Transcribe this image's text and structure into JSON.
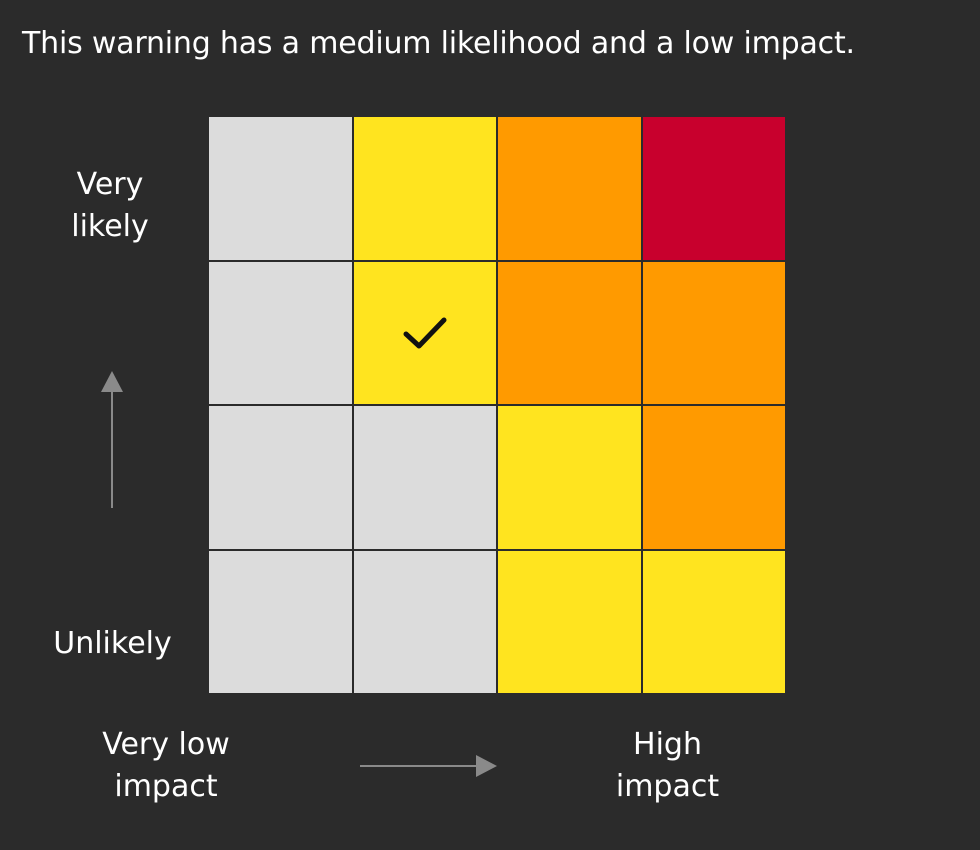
{
  "headline": "This warning has a medium likelihood and a low impact.",
  "y_axis": {
    "top_line1": "Very",
    "top_line2": "likely",
    "bottom": "Unlikely"
  },
  "x_axis": {
    "left_line1": "Very low",
    "left_line2": "impact",
    "right_line1": "High",
    "right_line2": "impact"
  },
  "colors": {
    "background": "#2b2b2b",
    "grey": "#dcdcdc",
    "yellow": "#ffe41f",
    "orange": "#ff9a00",
    "red": "#c8002d",
    "axis_arrow": "#8a8a8a"
  },
  "matrix": {
    "rows": [
      [
        "grey",
        "yellow",
        "orange",
        "red"
      ],
      [
        "grey",
        "yellow",
        "orange",
        "orange"
      ],
      [
        "grey",
        "grey",
        "yellow",
        "orange"
      ],
      [
        "grey",
        "grey",
        "yellow",
        "yellow"
      ]
    ],
    "selected": {
      "row": 1,
      "col": 1
    },
    "selected_icon": "check-icon"
  }
}
